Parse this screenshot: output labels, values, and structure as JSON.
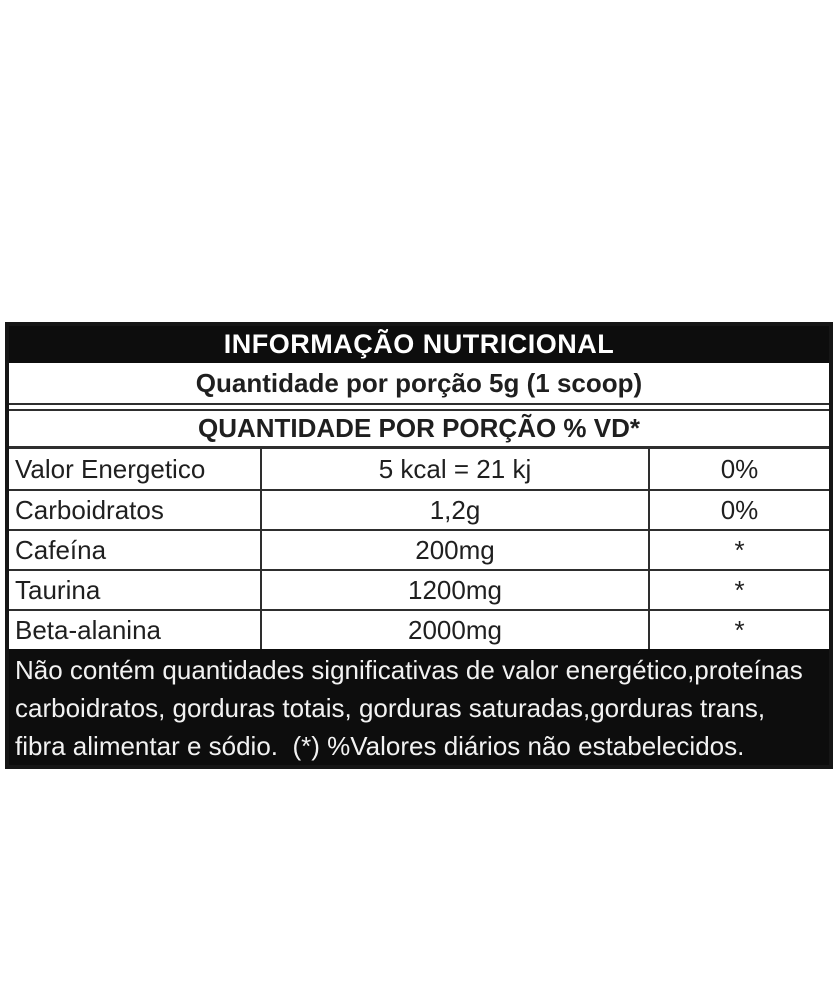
{
  "nutrition_table": {
    "title": "INFORMAÇÃO NUTRICIONAL",
    "serving_line": "Quantidade por porção 5g (1 scoop)",
    "columns_header": "QUANTIDADE POR PORÇÃO % VD*",
    "rows": [
      {
        "name": "Valor Energetico",
        "amount": "5 kcal = 21 kj",
        "dv": "0%"
      },
      {
        "name": "Carboidratos",
        "amount": "1,2g",
        "dv": "0%"
      },
      {
        "name": "Cafeína",
        "amount": "200mg",
        "dv": "*"
      },
      {
        "name": "Taurina",
        "amount": "1200mg",
        "dv": "*"
      },
      {
        "name": "Beta-alanina",
        "amount": "2000mg",
        "dv": "*"
      }
    ],
    "footnote_lines": [
      "Não contém quantidades significativas de valor energético,proteínas",
      "carboidratos, gorduras totais, gorduras saturadas,gorduras trans,",
      "fibra alimentar e sódio.  (*) %Valores diários não estabelecidos."
    ],
    "colors": {
      "band_bg": "#0d0d0d",
      "band_text": "#ffffff",
      "body_text": "#1f1f1f",
      "border": "#2e2e2e",
      "page_bg": "#ffffff"
    }
  }
}
